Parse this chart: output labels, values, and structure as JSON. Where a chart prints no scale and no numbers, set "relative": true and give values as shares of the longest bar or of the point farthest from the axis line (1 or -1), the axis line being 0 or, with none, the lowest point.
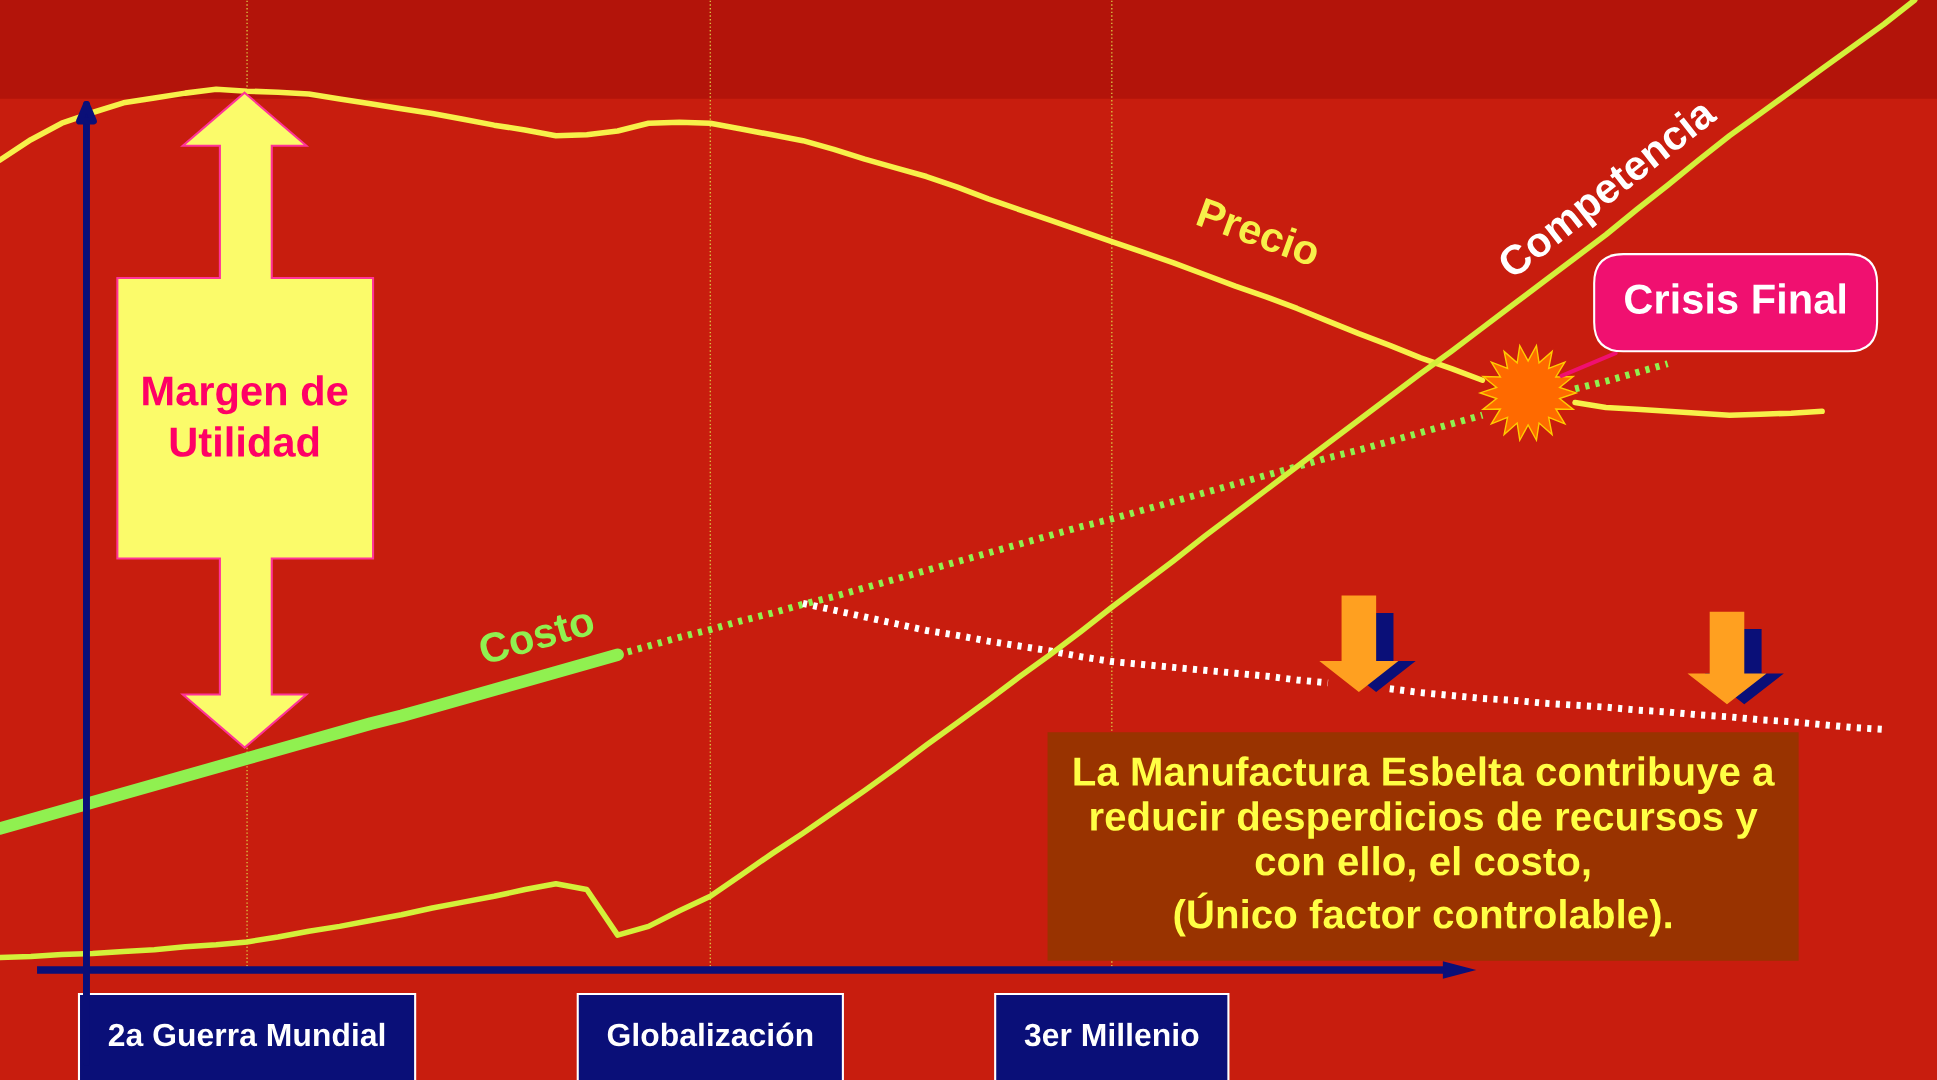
{
  "chart_data": {
    "type": "line",
    "relative": true,
    "categories": [
      null,
      null,
      null,
      null,
      null,
      null,
      null,
      null,
      "2a Guerra Mundial",
      null,
      null,
      null,
      null,
      null,
      null,
      null,
      null,
      null,
      null,
      null,
      null,
      null,
      null,
      "Globalización",
      null,
      null,
      null,
      null,
      null,
      null,
      null,
      null,
      null,
      null,
      null,
      null,
      "3er Millenio",
      null,
      null,
      null,
      null,
      null,
      null,
      null,
      null,
      null,
      null,
      null,
      null,
      null,
      null,
      null,
      null,
      null,
      null,
      null,
      null,
      null,
      null,
      null,
      null,
      null,
      null
    ],
    "grid": "x",
    "legend": false,
    "marker": "none",
    "series": [
      {
        "name": "Precio",
        "color": "#f7f04a",
        "line_style": "solid",
        "values": [
          0.835,
          0.856,
          0.873,
          0.884,
          0.894,
          0.899,
          0.904,
          0.908,
          0.906,
          0.905,
          0.903,
          0.898,
          0.893,
          0.888,
          0.883,
          0.877,
          0.871,
          0.866,
          0.86,
          0.861,
          0.865,
          0.873,
          0.874,
          0.873,
          0.867,
          0.861,
          0.855,
          0.846,
          0.836,
          0.827,
          0.818,
          0.807,
          0.795,
          0.784,
          0.773,
          0.762,
          0.751,
          0.74,
          0.729,
          0.717,
          0.705,
          0.694,
          0.682,
          0.669,
          0.656,
          0.644,
          0.631,
          0.62,
          0.608,
          null,
          null,
          0.585,
          0.58,
          0.578,
          0.576,
          0.574,
          0.572,
          0.573,
          0.574,
          0.576,
          null,
          null,
          null
        ]
      },
      {
        "name": "Costo",
        "color": "#90f050",
        "line_style": "solid",
        "values": [
          0.146,
          0.155,
          0.164,
          0.173,
          0.182,
          0.191,
          0.2,
          0.209,
          0.218,
          0.227,
          0.236,
          0.245,
          0.254,
          0.262,
          0.271,
          0.28,
          0.289,
          0.298,
          0.307,
          0.316,
          0.325,
          null,
          null,
          null,
          null,
          null,
          null,
          null,
          null,
          null,
          null,
          null,
          null,
          null,
          null,
          null,
          null,
          null,
          null,
          null,
          null,
          null,
          null,
          null,
          null,
          null,
          null,
          null,
          null,
          null,
          null,
          null,
          null,
          null,
          null,
          null,
          null,
          null,
          null,
          null,
          null,
          null,
          null
        ]
      },
      {
        "color": "#90f050",
        "line_style": "dotted",
        "values": [
          null,
          null,
          null,
          null,
          null,
          null,
          null,
          null,
          null,
          null,
          null,
          null,
          null,
          null,
          null,
          null,
          null,
          null,
          null,
          null,
          0.325,
          0.334,
          0.343,
          0.351,
          0.36,
          0.368,
          0.377,
          0.385,
          0.394,
          0.403,
          0.412,
          0.421,
          0.43,
          0.439,
          0.448,
          0.457,
          0.465,
          0.474,
          0.483,
          0.492,
          0.501,
          0.51,
          0.519,
          0.528,
          0.536,
          0.545,
          0.554,
          0.563,
          0.572,
          null,
          null,
          0.599,
          0.607,
          0.616,
          0.625,
          null,
          null,
          null,
          null,
          null,
          null,
          null,
          null
        ]
      },
      {
        "color": "#ffffff",
        "line_style": "dotted",
        "values": [
          null,
          null,
          null,
          null,
          null,
          null,
          null,
          null,
          null,
          null,
          null,
          null,
          null,
          null,
          null,
          null,
          null,
          null,
          null,
          null,
          null,
          null,
          null,
          null,
          null,
          null,
          0.378,
          0.371,
          0.364,
          0.357,
          0.35,
          0.345,
          0.339,
          0.334,
          0.329,
          0.323,
          0.318,
          0.315,
          0.312,
          0.309,
          0.306,
          0.303,
          0.299,
          0.296,
          null,
          0.29,
          0.286,
          0.283,
          0.28,
          0.278,
          0.275,
          0.273,
          0.271,
          0.268,
          0.266,
          0.263,
          0.261,
          0.258,
          0.256,
          0.253,
          0.25,
          0.248,
          null
        ]
      },
      {
        "name": "Competencia",
        "color": "#d4f03a",
        "line_style": "solid",
        "values": [
          0.013,
          0.014,
          0.016,
          0.017,
          0.019,
          0.021,
          0.024,
          0.026,
          0.029,
          0.034,
          0.04,
          0.045,
          0.051,
          0.057,
          0.064,
          0.07,
          0.076,
          0.083,
          0.089,
          0.083,
          0.036,
          0.045,
          0.061,
          0.076,
          0.098,
          0.12,
          0.141,
          0.163,
          0.185,
          0.208,
          0.232,
          0.255,
          0.278,
          0.302,
          0.325,
          0.349,
          0.374,
          0.398,
          0.422,
          0.447,
          0.471,
          0.495,
          0.519,
          0.543,
          0.567,
          0.591,
          0.615,
          0.638,
          0.662,
          0.686,
          0.71,
          0.734,
          0.758,
          0.784,
          0.809,
          0.835,
          0.86,
          0.883,
          0.906,
          0.929,
          0.952,
          0.975,
          1.0
        ]
      }
    ],
    "annotations": [
      "Margen de\nUtilidad",
      "Crisis Final",
      "La Manufactura Esbelta contribuye a\nreducir desperdicios de recursos y\ncon ello, el costo,\n(Único factor controlable)."
    ]
  }
}
